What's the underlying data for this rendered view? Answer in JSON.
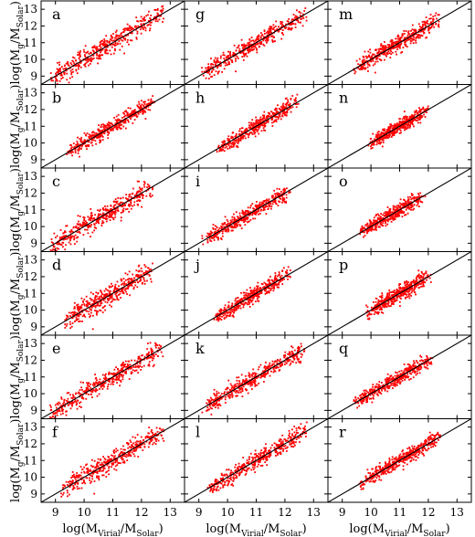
{
  "chart_data": {
    "type": "scatter",
    "layout": "6 rows x 3 columns grid of scatter panels",
    "xlabel": {
      "main": "log(M",
      "sub1": "Virial",
      "mid": "/M",
      "sub2": "Solar",
      "end": ")"
    },
    "ylabel": {
      "main": "log(M",
      "sub1": "g",
      "mid": "/M",
      "sub2": "Solar",
      "end": ")"
    },
    "xlim": [
      8.5,
      13.5
    ],
    "ylim": [
      8.5,
      13.5
    ],
    "xticks": [
      9,
      10,
      11,
      12,
      13
    ],
    "yticks": [
      9,
      10,
      11,
      12,
      13
    ],
    "reference_line": "y = x",
    "point_color": "#ff0000",
    "line_color": "#000000",
    "panels": [
      {
        "label": "a",
        "x_range": [
          9.0,
          12.6
        ],
        "spread": 0.3
      },
      {
        "label": "g",
        "x_range": [
          9.3,
          12.6
        ],
        "spread": 0.25
      },
      {
        "label": "m",
        "x_range": [
          9.6,
          12.2
        ],
        "spread": 0.25
      },
      {
        "label": "b",
        "x_range": [
          9.6,
          12.3
        ],
        "spread": 0.22
      },
      {
        "label": "h",
        "x_range": [
          9.8,
          12.3
        ],
        "spread": 0.22
      },
      {
        "label": "n",
        "x_range": [
          10.1,
          11.8
        ],
        "spread": 0.2
      },
      {
        "label": "c",
        "x_range": [
          9.0,
          12.2
        ],
        "spread": 0.3
      },
      {
        "label": "i",
        "x_range": [
          9.3,
          12.0
        ],
        "spread": 0.22
      },
      {
        "label": "o",
        "x_range": [
          9.8,
          11.7
        ],
        "spread": 0.22
      },
      {
        "label": "d",
        "x_range": [
          9.5,
          12.2
        ],
        "spread": 0.3
      },
      {
        "label": "j",
        "x_range": [
          9.7,
          12.0
        ],
        "spread": 0.22
      },
      {
        "label": "p",
        "x_range": [
          10.0,
          11.9
        ],
        "spread": 0.25
      },
      {
        "label": "e",
        "x_range": [
          9.0,
          12.6
        ],
        "spread": 0.28
      },
      {
        "label": "k",
        "x_range": [
          9.3,
          12.5
        ],
        "spread": 0.25
      },
      {
        "label": "q",
        "x_range": [
          9.6,
          12.0
        ],
        "spread": 0.22
      },
      {
        "label": "f",
        "x_range": [
          9.4,
          12.6
        ],
        "spread": 0.28
      },
      {
        "label": "l",
        "x_range": [
          9.5,
          12.6
        ],
        "spread": 0.25
      },
      {
        "label": "r",
        "x_range": [
          9.8,
          12.3
        ],
        "spread": 0.22
      }
    ]
  }
}
